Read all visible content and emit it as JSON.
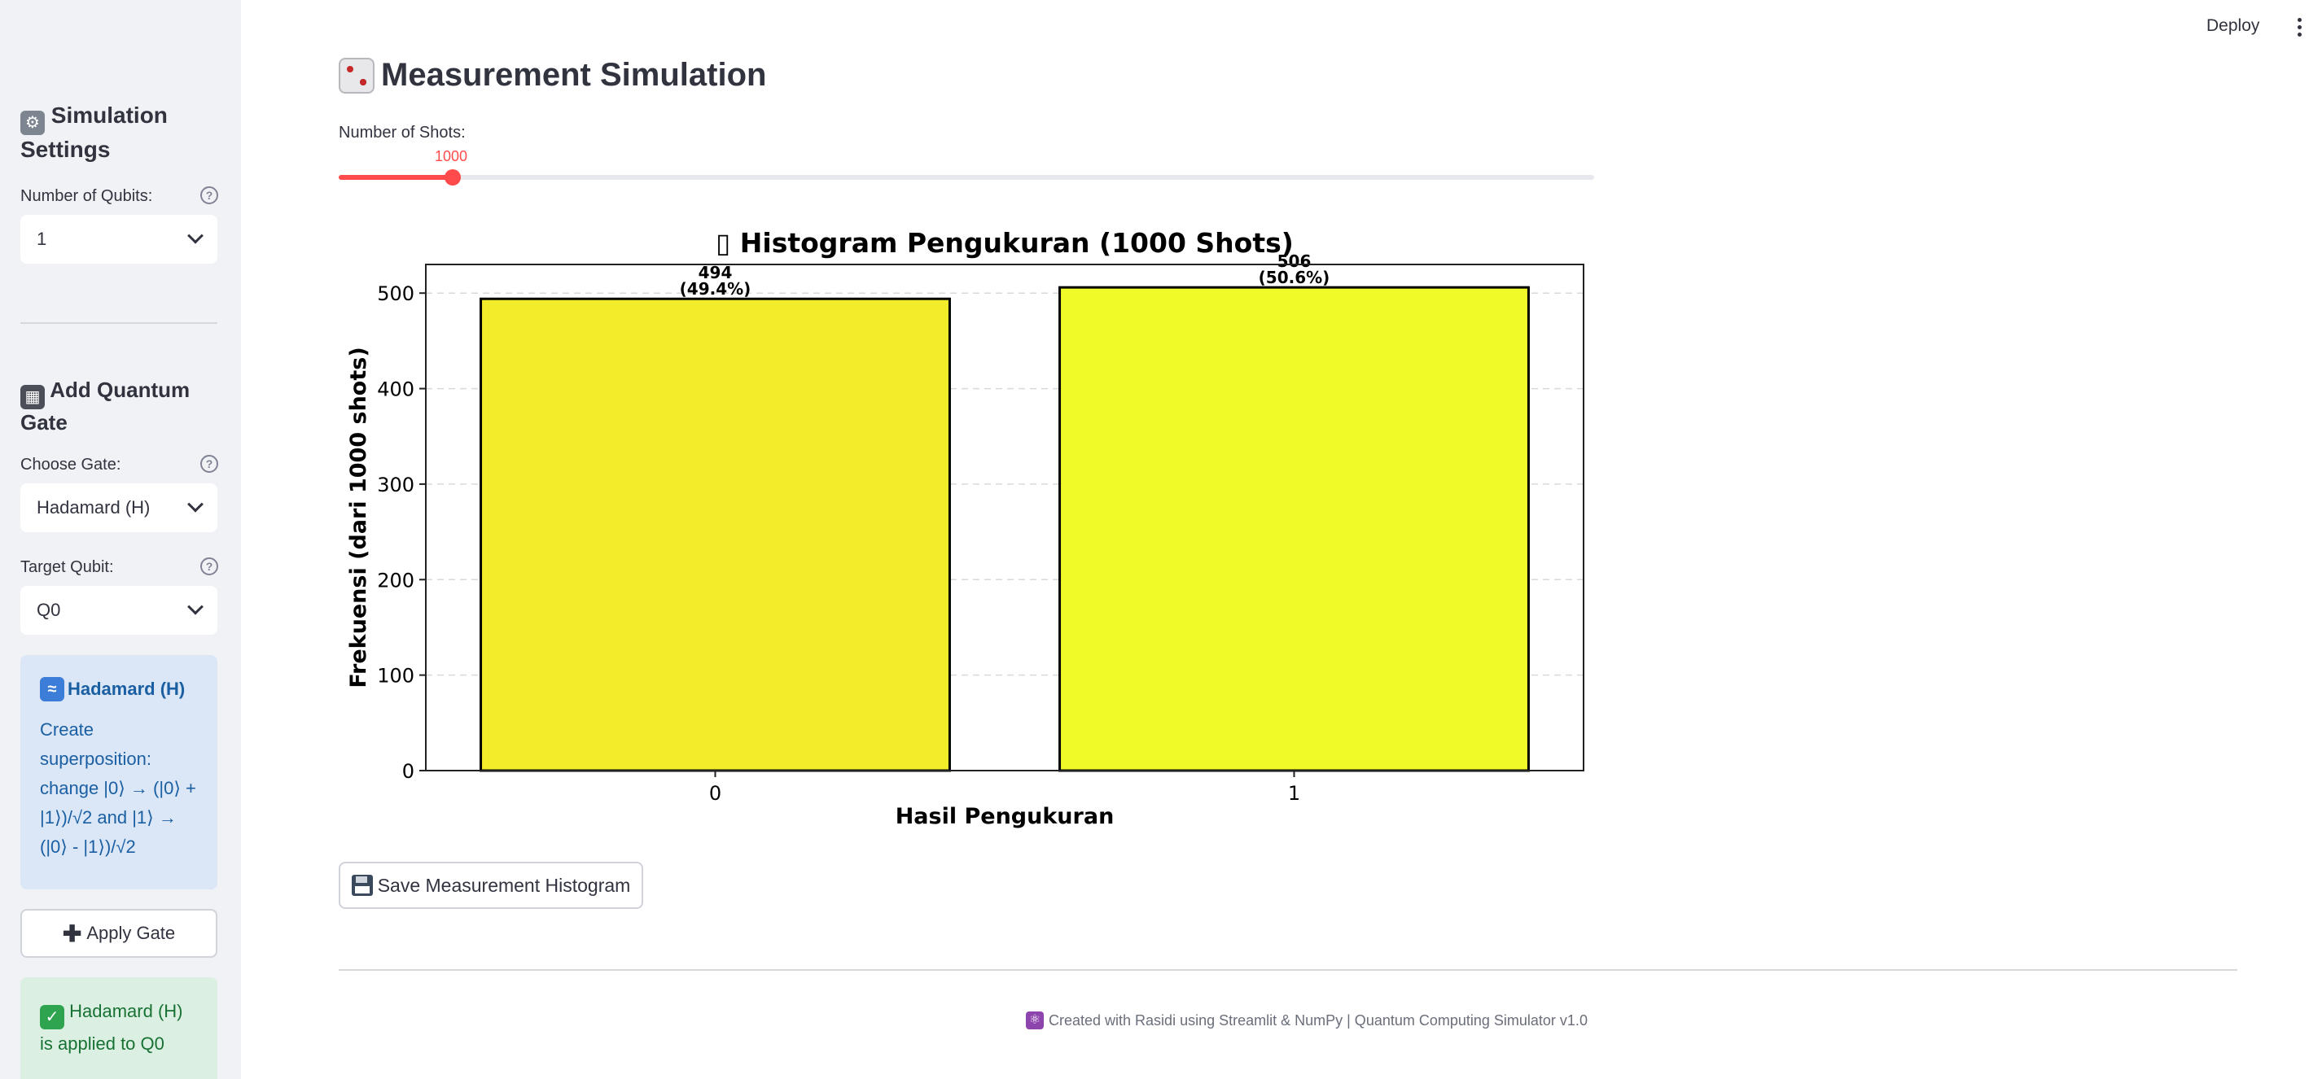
{
  "sidebar": {
    "simulation_settings": {
      "title": "Simulation Settings",
      "icon": "gear-icon"
    },
    "num_qubits": {
      "label": "Number of Qubits:",
      "value": "1"
    },
    "add_gate": {
      "title": "Add Quantum Gate",
      "icon": "control-knobs-icon"
    },
    "choose_gate": {
      "label": "Choose Gate:",
      "value": "Hadamard (H)"
    },
    "target_qubit": {
      "label": "Target Qubit:",
      "value": "Q0"
    },
    "info": {
      "title": "Hadamard (H)",
      "icon": "wave-icon",
      "text": "Create superposition: change |0⟩ → (|0⟩ + |1⟩)/√2 and |1⟩ → (|0⟩ - |1⟩)/√2"
    },
    "apply_button": "Apply Gate",
    "success": {
      "text": "Hadamard (H) is applied to Q0",
      "icon": "check-icon"
    }
  },
  "header": {
    "deploy": "Deploy"
  },
  "main": {
    "title": "Measurement Simulation",
    "title_icon": "dice-icon",
    "shots": {
      "label": "Number of Shots:",
      "value": "1000",
      "fraction": 0.091
    },
    "save_button": "Save Measurement Histogram",
    "footer": "Created with Rasidi using Streamlit & NumPy | Quantum Computing Simulator v1.0"
  },
  "chart_data": {
    "type": "bar",
    "title": "▯ Histogram Pengukuran (1000 Shots)",
    "xlabel": "Hasil Pengukuran",
    "ylabel": "Frekuensi (dari 1000 shots)",
    "categories": [
      "0",
      "1"
    ],
    "values": [
      494,
      506
    ],
    "bar_labels": [
      [
        "494",
        "(49.4%)"
      ],
      [
        "506",
        "(50.6%)"
      ]
    ],
    "ylim": [
      0,
      530
    ],
    "yticks": [
      0,
      100,
      200,
      300,
      400,
      500
    ],
    "colors": [
      "#f2ec2a",
      "#f0fa28"
    ],
    "grid": "y-dashed"
  }
}
